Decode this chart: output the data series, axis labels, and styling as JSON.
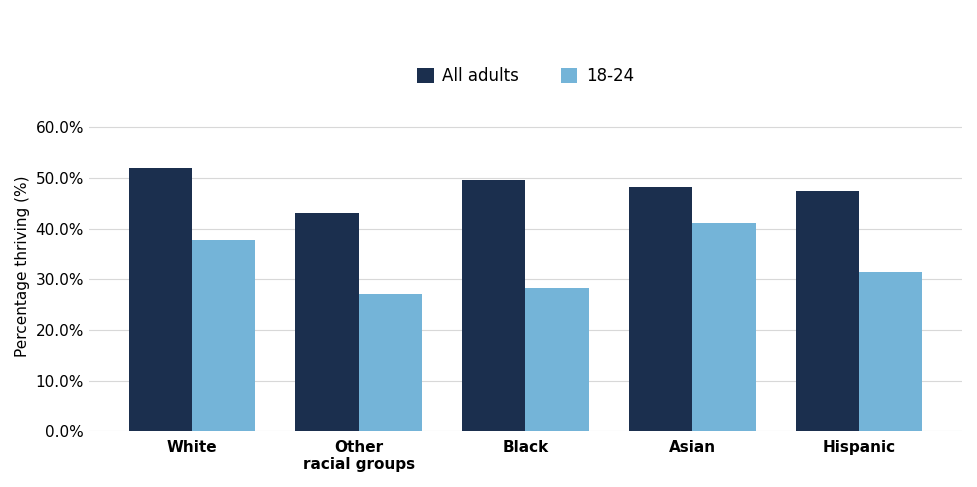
{
  "categories": [
    "White",
    "Other\nracial groups",
    "Black",
    "Asian",
    "Hispanic"
  ],
  "all_adults": [
    52.0,
    43.0,
    49.5,
    48.3,
    47.5
  ],
  "age_18_24": [
    37.7,
    27.0,
    28.3,
    41.0,
    31.5
  ],
  "color_all_adults": "#1b2f4e",
  "color_18_24": "#74b4d8",
  "ylabel": "Percentage thriving (%)",
  "ylim": [
    0,
    65
  ],
  "yticks": [
    0,
    10,
    20,
    30,
    40,
    50,
    60
  ],
  "legend_labels": [
    "All adults",
    "18-24"
  ],
  "bar_width": 0.38,
  "background_color": "#ffffff",
  "plot_bg_color": "#ffffff",
  "grid_color": "#d8d8d8",
  "label_fontsize": 11,
  "tick_fontsize": 11,
  "legend_fontsize": 12
}
